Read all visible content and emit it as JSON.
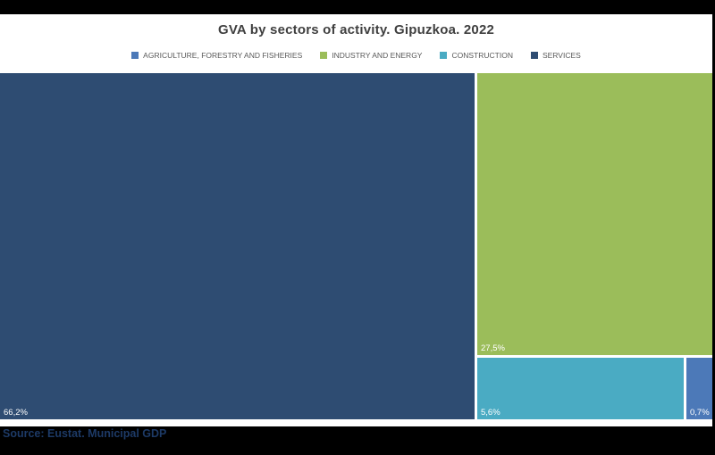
{
  "page": {
    "background": "#000000",
    "canvas_background": "#ffffff"
  },
  "chart_data": {
    "type": "treemap",
    "title": "GVA by sectors of activity. Gipuzkoa. 2022",
    "legend_position": "top",
    "values_are_percent": true,
    "series": [
      {
        "name": "AGRICULTURE, FORESTRY AND FISHERIES",
        "value": 0.7,
        "label": "0,7%",
        "color": "#4c79b8"
      },
      {
        "name": "INDUSTRY AND ENERGY",
        "value": 27.5,
        "label": "27,5%",
        "color": "#9bbd5a"
      },
      {
        "name": "CONSTRUCTION",
        "value": 5.6,
        "label": "5,6%",
        "color": "#4aabc3"
      },
      {
        "name": "SERVICES",
        "value": 66.2,
        "label": "66,2%",
        "color": "#2e4c72"
      }
    ]
  },
  "footer": {
    "source": "Source: Eustat. Municipal GDP",
    "color": "#1d3a66"
  }
}
